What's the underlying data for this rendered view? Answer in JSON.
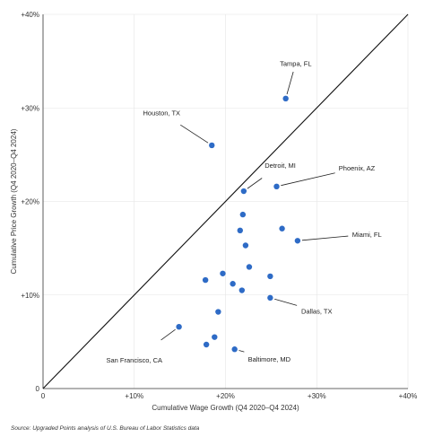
{
  "chart_data": {
    "type": "scatter",
    "xlabel": "Cumulative Wage Growth (Q4 2020–Q4 2024)",
    "ylabel": "Cumulative Price Growth (Q4 2020–Q4 2024)",
    "xlim": [
      0,
      40
    ],
    "ylim": [
      0,
      40
    ],
    "x_ticks": [
      {
        "value": 0,
        "label": "0"
      },
      {
        "value": 10,
        "label": "+10%"
      },
      {
        "value": 20,
        "label": "+20%"
      },
      {
        "value": 30,
        "label": "+30%"
      },
      {
        "value": 40,
        "label": "+40%"
      }
    ],
    "y_ticks": [
      {
        "value": 0,
        "label": "0"
      },
      {
        "value": 10,
        "label": "+10%"
      },
      {
        "value": 20,
        "label": "+20%"
      },
      {
        "value": 30,
        "label": "+30%"
      },
      {
        "value": 40,
        "label": "+40%"
      }
    ],
    "reference_line": {
      "x": [
        0,
        40
      ],
      "y": [
        0,
        40
      ]
    },
    "marker_color": "#2e6bc6",
    "points": [
      {
        "x": 26.6,
        "y": 31.0,
        "label": "Tampa, FL",
        "label_x": 27.7,
        "label_y": 34.5
      },
      {
        "x": 18.5,
        "y": 26.0,
        "label": "Houston, TX",
        "label_x": 13.0,
        "label_y": 29.2
      },
      {
        "x": 22.0,
        "y": 21.1,
        "label": "Detroit, MI",
        "label_x": 26.0,
        "label_y": 23.6
      },
      {
        "x": 25.6,
        "y": 21.6,
        "label": "Phoenix, AZ",
        "label_x": 34.4,
        "label_y": 23.3
      },
      {
        "x": 27.9,
        "y": 15.8,
        "label": "Miami, FL",
        "label_x": 35.5,
        "label_y": 16.2
      },
      {
        "x": 24.9,
        "y": 9.7,
        "label": "Dallas, TX",
        "label_x": 30.0,
        "label_y": 8.0
      },
      {
        "x": 14.9,
        "y": 6.6,
        "label": "San Francisco, CA",
        "label_x": 10.0,
        "label_y": 2.8
      },
      {
        "x": 21.0,
        "y": 4.2,
        "label": "Baltimore, MD",
        "label_x": 24.8,
        "label_y": 2.9
      },
      {
        "x": 21.9,
        "y": 18.6,
        "label": ""
      },
      {
        "x": 21.6,
        "y": 16.9,
        "label": ""
      },
      {
        "x": 26.2,
        "y": 17.1,
        "label": ""
      },
      {
        "x": 22.2,
        "y": 15.3,
        "label": ""
      },
      {
        "x": 22.6,
        "y": 13.0,
        "label": ""
      },
      {
        "x": 19.7,
        "y": 12.3,
        "label": ""
      },
      {
        "x": 24.9,
        "y": 12.0,
        "label": ""
      },
      {
        "x": 17.8,
        "y": 11.6,
        "label": ""
      },
      {
        "x": 20.8,
        "y": 11.2,
        "label": ""
      },
      {
        "x": 21.8,
        "y": 10.5,
        "label": ""
      },
      {
        "x": 19.2,
        "y": 8.2,
        "label": ""
      },
      {
        "x": 18.8,
        "y": 5.5,
        "label": ""
      },
      {
        "x": 17.9,
        "y": 4.7,
        "label": ""
      }
    ]
  },
  "source": "Source: Upgraded Points analysis of U.S. Bureau of Labor Statistics data"
}
